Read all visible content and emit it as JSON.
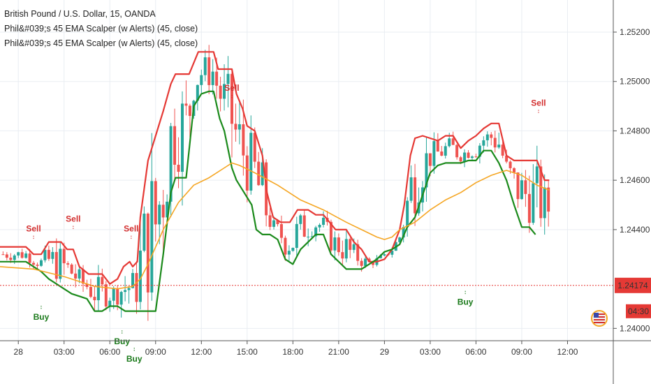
{
  "legend": {
    "symbol_line": "British Pound / U.S. Dollar, 15, OANDA",
    "indicator_1": "Phil&#039;s 45 EMA Scalper (w Alerts) (45, close)",
    "indicator_2": "Phil&#039;s 45 EMA Scalper (w Alerts) (45, close)"
  },
  "colors": {
    "up_candle": "#26a69a",
    "down_candle": "#ef5350",
    "upper_band": "#e53935",
    "lower_band": "#1b8a1b",
    "ema": "#f5a623",
    "price_line": "#e53935",
    "grid": "#e9edf2"
  },
  "chart_data": {
    "type": "line",
    "ylim": [
      1.2395,
      1.2533
    ],
    "y_ticks": [
      "1.25200",
      "1.25000",
      "1.24800",
      "1.24600",
      "1.24400",
      "1.24000"
    ],
    "y_tick_values": [
      1.252,
      1.25,
      1.248,
      1.246,
      1.244,
      1.24
    ],
    "x_ticks": [
      "28",
      "03:00",
      "06:00",
      "09:00",
      "12:00",
      "15:00",
      "18:00",
      "21:00",
      "29",
      "03:00",
      "06:00",
      "09:00",
      "12:00"
    ],
    "x_tick_hours": [
      0,
      3,
      6,
      9,
      12,
      15,
      18,
      21,
      24,
      27,
      30,
      33,
      36
    ],
    "x_range_hours": [
      -1.2,
      39.0
    ],
    "last_price": "1.24174",
    "last_price_value": 1.24174,
    "countdown": "04:30",
    "series": [
      {
        "key": "upper",
        "x": [
          -1.2,
          0.5,
          1.0,
          1.5,
          2.0,
          2.8,
          3.2,
          3.6,
          4.0,
          4.6,
          5.5,
          6.0,
          6.5,
          6.9,
          7.3,
          7.5,
          7.8,
          8.0,
          8.5,
          9.0,
          9.5,
          10.0,
          10.3,
          10.7,
          11.2,
          11.8,
          12.0,
          12.8,
          13.1,
          13.5,
          14.0,
          14.3,
          14.7,
          15.0,
          15.5,
          16.0,
          16.3,
          16.7,
          17.2,
          17.8,
          18.3,
          19.0,
          19.5,
          20.0,
          20.4,
          20.8,
          21.5,
          22.0,
          22.5,
          23.0,
          23.5,
          24.0,
          24.5,
          25.0,
          25.3,
          25.7,
          26.0,
          26.5,
          27.0,
          27.5,
          28.0,
          28.5,
          29.0,
          29.5,
          30.0,
          30.5,
          31.0,
          31.5,
          32.0,
          32.5,
          33.0,
          33.5,
          34.0,
          34.5,
          34.8
        ],
        "y": [
          1.2433,
          1.2433,
          1.243,
          1.243,
          1.2435,
          1.2435,
          1.2432,
          1.2432,
          1.2425,
          1.2422,
          1.2422,
          1.2418,
          1.242,
          1.2425,
          1.2427,
          1.2425,
          1.2427,
          1.2445,
          1.2468,
          1.2478,
          1.2488,
          1.2499,
          1.2503,
          1.2503,
          1.2503,
          1.2512,
          1.2512,
          1.2512,
          1.2505,
          1.2505,
          1.2505,
          1.2495,
          1.2489,
          1.2482,
          1.248,
          1.247,
          1.2455,
          1.2445,
          1.2443,
          1.2443,
          1.2448,
          1.2448,
          1.2446,
          1.2446,
          1.2443,
          1.244,
          1.244,
          1.2435,
          1.2432,
          1.2427,
          1.2427,
          1.2428,
          1.2432,
          1.244,
          1.245,
          1.247,
          1.2477,
          1.2478,
          1.2477,
          1.2476,
          1.2478,
          1.2478,
          1.2473,
          1.2476,
          1.2478,
          1.2481,
          1.2483,
          1.2483,
          1.247,
          1.2468,
          1.2468,
          1.2468,
          1.2468,
          1.246,
          1.246
        ]
      },
      {
        "key": "lower",
        "x": [
          -1.2,
          0.5,
          1.0,
          1.5,
          2.0,
          3.0,
          3.5,
          4.0,
          4.5,
          5.0,
          5.5,
          6.0,
          6.5,
          7.0,
          7.5,
          8.0,
          8.5,
          9.0,
          9.5,
          10.0,
          10.3,
          10.5,
          10.8,
          11.0,
          11.5,
          12.0,
          12.5,
          12.8,
          13.2,
          13.5,
          14.0,
          14.3,
          14.8,
          15.3,
          15.6,
          16.0,
          16.5,
          17.0,
          17.5,
          18.0,
          18.5,
          19.0,
          19.5,
          20.0,
          20.5,
          21.0,
          21.5,
          22.0,
          22.5,
          23.0,
          23.5,
          24.0,
          24.5,
          25.0,
          25.5,
          26.0,
          26.5,
          27.0,
          27.5,
          28.0,
          28.5,
          29.0,
          29.5,
          30.0,
          30.5,
          31.0,
          31.5,
          32.0,
          32.5,
          33.0,
          33.5,
          33.9
        ],
        "y": [
          1.2427,
          1.2427,
          1.2425,
          1.2423,
          1.242,
          1.2416,
          1.2414,
          1.2413,
          1.2412,
          1.2407,
          1.2407,
          1.2409,
          1.2409,
          1.2407,
          1.2407,
          1.2407,
          1.2407,
          1.2407,
          1.243,
          1.2455,
          1.2461,
          1.2461,
          1.2461,
          1.2461,
          1.249,
          1.2495,
          1.2496,
          1.2496,
          1.2485,
          1.248,
          1.2465,
          1.246,
          1.2455,
          1.245,
          1.244,
          1.2438,
          1.2438,
          1.2436,
          1.2428,
          1.2426,
          1.2432,
          1.2435,
          1.2438,
          1.2438,
          1.243,
          1.2427,
          1.2424,
          1.2424,
          1.2424,
          1.2426,
          1.2428,
          1.2431,
          1.2432,
          1.2434,
          1.2441,
          1.2445,
          1.2454,
          1.2463,
          1.2466,
          1.2467,
          1.2467,
          1.2467,
          1.2468,
          1.2468,
          1.2472,
          1.2472,
          1.2467,
          1.246,
          1.245,
          1.2441,
          1.2441,
          1.2438
        ]
      },
      {
        "key": "ema",
        "x": [
          -1.2,
          1.0,
          3.0,
          5.0,
          6.5,
          7.5,
          8.0,
          8.5,
          9.5,
          10.5,
          11.5,
          12.5,
          13.5,
          14.0,
          14.5,
          15.5,
          17.0,
          18.5,
          20.0,
          21.5,
          22.5,
          23.5,
          24.0,
          24.5,
          25.0,
          26.0,
          27.0,
          28.0,
          29.0,
          30.0,
          31.0,
          31.5,
          32.0,
          33.0,
          34.0,
          34.8
        ],
        "y": [
          1.2425,
          1.2424,
          1.2421,
          1.2417,
          1.2416,
          1.2417,
          1.242,
          1.2426,
          1.244,
          1.2451,
          1.2458,
          1.2461,
          1.2465,
          1.2467,
          1.2466,
          1.2463,
          1.2458,
          1.2452,
          1.2448,
          1.2443,
          1.244,
          1.2437,
          1.2436,
          1.2437,
          1.244,
          1.2443,
          1.2448,
          1.2452,
          1.2455,
          1.2459,
          1.2462,
          1.2463,
          1.2464,
          1.2462,
          1.2458,
          1.2456
        ]
      }
    ],
    "signals": [
      {
        "label": "Sell",
        "x": 1.0,
        "y": 1.2433,
        "kind": "sell"
      },
      {
        "label": "Buy",
        "x": 1.5,
        "y": 1.2412,
        "kind": "buy"
      },
      {
        "label": "Sell",
        "x": 3.6,
        "y": 1.2437,
        "kind": "sell"
      },
      {
        "label": "Sell",
        "x": 7.4,
        "y": 1.2433,
        "kind": "sell"
      },
      {
        "label": "Buy",
        "x": 6.8,
        "y": 1.2402,
        "kind": "buy"
      },
      {
        "label": "Buy",
        "x": 7.6,
        "y": 1.2395,
        "kind": "buy"
      },
      {
        "label": "Sell",
        "x": 14.0,
        "y": 1.249,
        "kind": "sell"
      },
      {
        "label": "Buy",
        "x": 29.3,
        "y": 1.2418,
        "kind": "buy"
      },
      {
        "label": "Sell",
        "x": 34.1,
        "y": 1.2484,
        "kind": "sell"
      }
    ]
  }
}
